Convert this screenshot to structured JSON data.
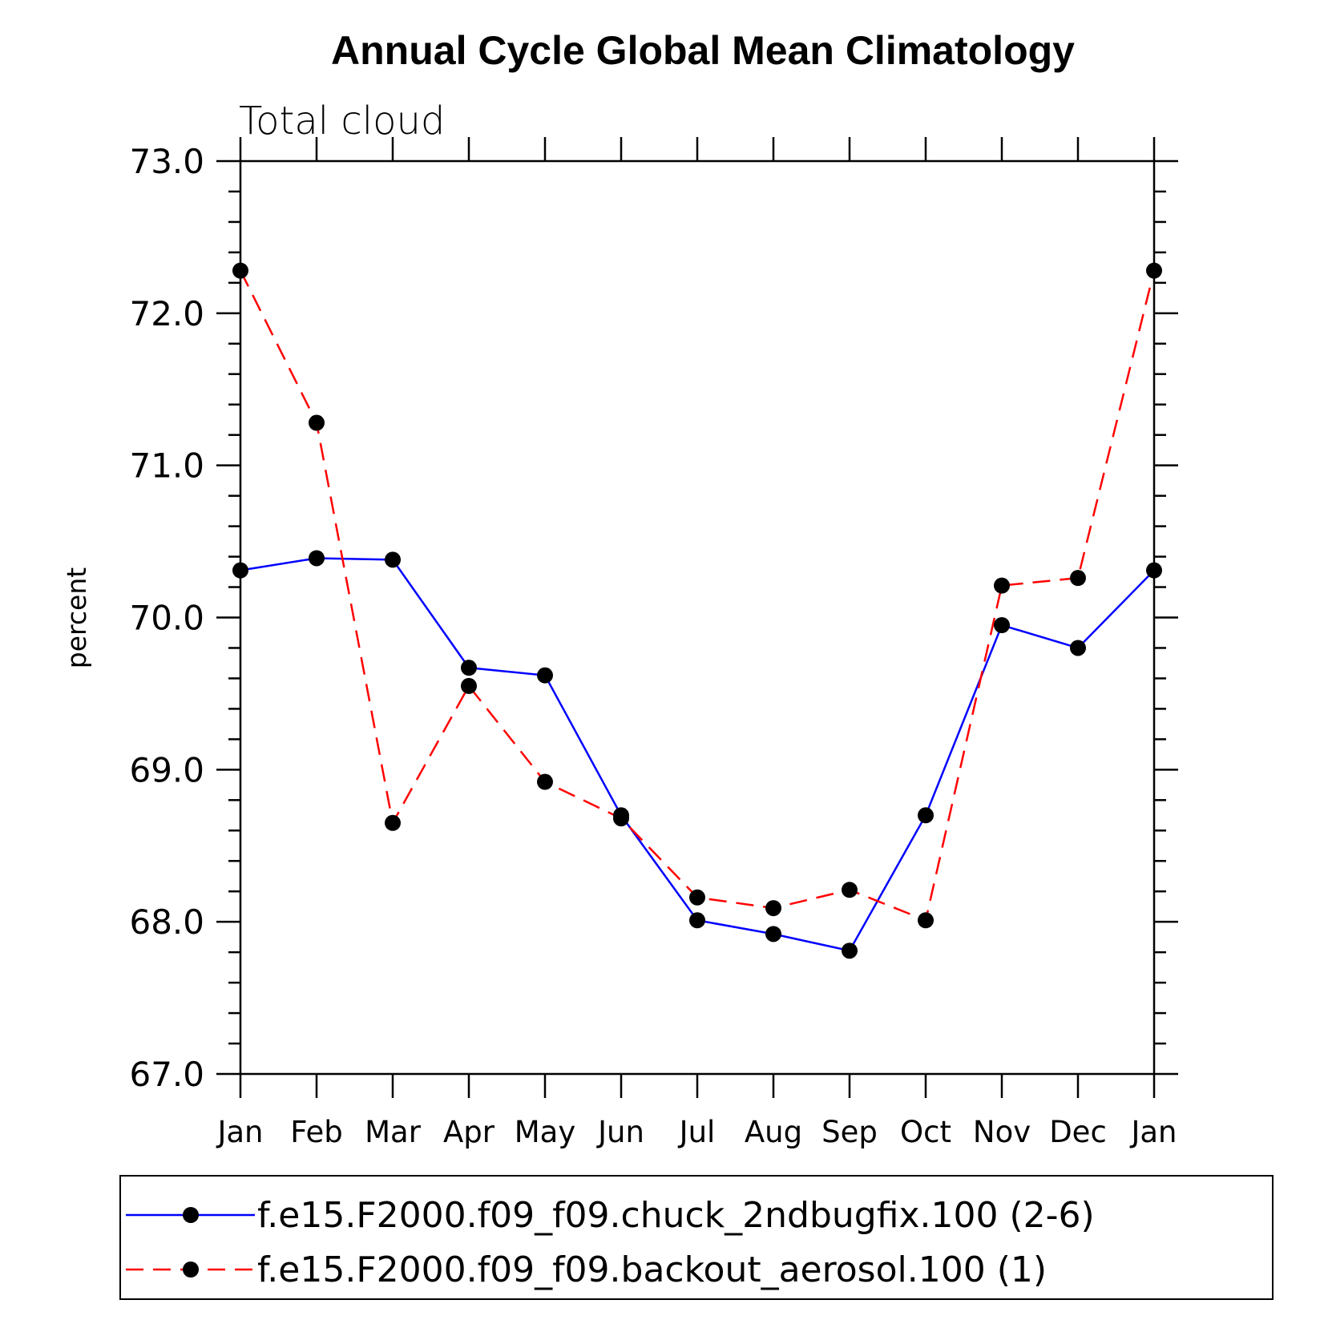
{
  "chart_data": {
    "type": "line",
    "title": "Annual Cycle Global Mean Climatology",
    "subtitle": "Total cloud",
    "ylabel": "percent",
    "xlabel": "",
    "categories": [
      "Jan",
      "Feb",
      "Mar",
      "Apr",
      "May",
      "Jun",
      "Jul",
      "Aug",
      "Sep",
      "Oct",
      "Nov",
      "Dec",
      "Jan"
    ],
    "ylim": [
      67.0,
      73.0
    ],
    "yticks": [
      "67.0",
      "68.0",
      "69.0",
      "70.0",
      "71.0",
      "72.0",
      "73.0"
    ],
    "series": [
      {
        "name": "f.e15.F2000.f09_f09.chuck_2ndbugfix.100 (2-6)",
        "color": "#0000ff",
        "style": "solid",
        "values": [
          70.31,
          70.39,
          70.38,
          69.67,
          69.62,
          68.7,
          68.01,
          67.92,
          67.81,
          68.7,
          69.95,
          69.8,
          70.31
        ]
      },
      {
        "name": "f.e15.F2000.f09_f09.backout_aerosol.100 (1)",
        "color": "#ff0000",
        "style": "dashed",
        "values": [
          72.28,
          71.28,
          68.65,
          69.55,
          68.92,
          68.68,
          68.16,
          68.09,
          68.21,
          68.01,
          70.21,
          70.26,
          72.28
        ]
      }
    ],
    "grid": false,
    "legend_position": "bottom"
  }
}
